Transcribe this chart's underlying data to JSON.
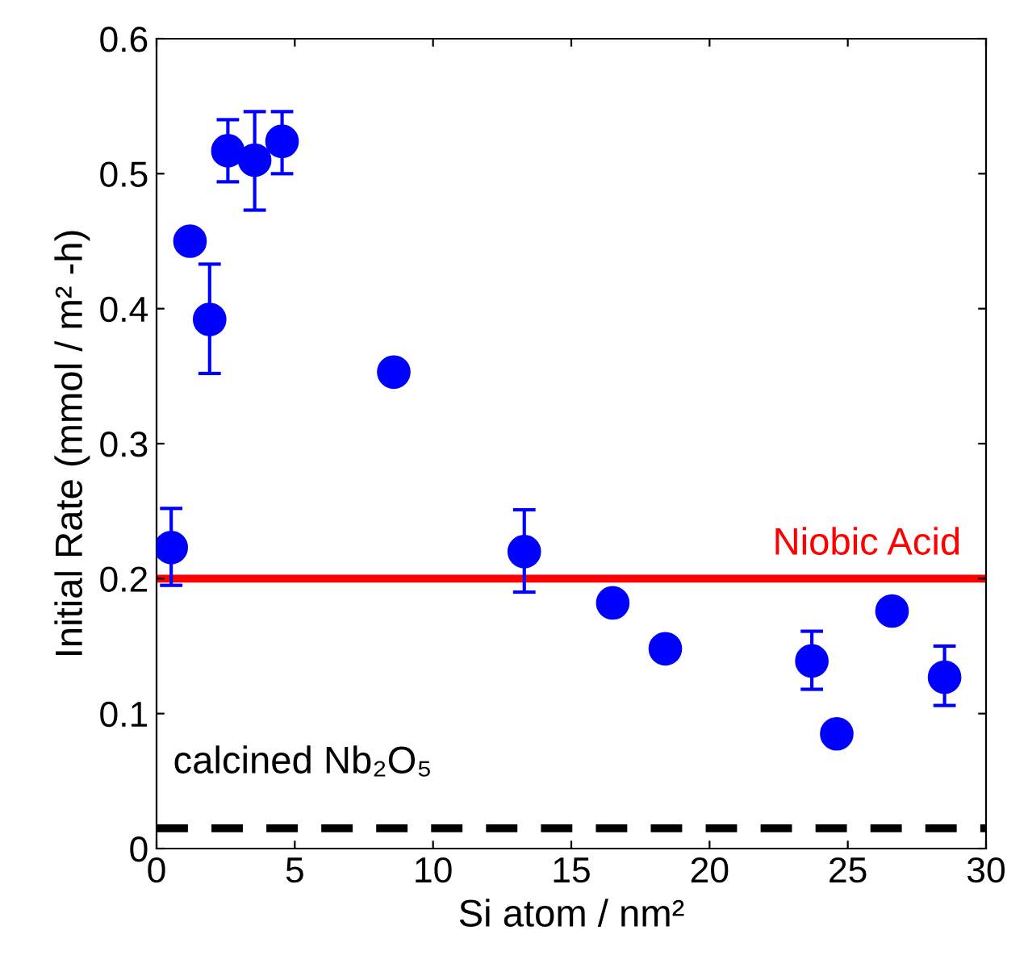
{
  "chart_data": {
    "type": "scatter",
    "xlabel": "Si atom / nm²",
    "ylabel": "Initial Rate (mmol / m² -h)",
    "xlim": [
      0,
      30
    ],
    "xticks": [
      0,
      5,
      10,
      15,
      20,
      25,
      30
    ],
    "ylim": [
      0,
      0.6
    ],
    "yticks": [
      0,
      0.1,
      0.2,
      0.3,
      0.4,
      0.5,
      0.6
    ],
    "grid": false,
    "legend": false,
    "marker": "circle",
    "series": [
      {
        "color": "#0000ff",
        "x": [
          0.53,
          1.21,
          1.92,
          2.58,
          3.55,
          4.54,
          8.58,
          13.3,
          16.5,
          18.4,
          23.7,
          24.6,
          26.6,
          28.5
        ],
        "values": [
          0.223,
          0.45,
          0.392,
          0.517,
          0.51,
          0.524,
          0.353,
          0.22,
          0.182,
          0.148,
          0.139,
          0.085,
          0.176,
          0.127
        ],
        "errors": [
          [
            0.195,
            0.252
          ],
          null,
          [
            0.352,
            0.433
          ],
          [
            0.494,
            0.54
          ],
          [
            0.473,
            0.546
          ],
          [
            0.5,
            0.546
          ],
          null,
          [
            0.19,
            0.251
          ],
          null,
          null,
          [
            0.118,
            0.161
          ],
          null,
          null,
          [
            0.106,
            0.15
          ]
        ]
      }
    ],
    "ref_lines": [
      {
        "axis": "y",
        "value": 0.2,
        "label": "Niobic Acid",
        "color": "#ff0000",
        "line_style": "solid"
      },
      {
        "axis": "y",
        "value": 0.015,
        "label": "calcined Nb₂O₅",
        "color": "#000000",
        "line_style": "dashed"
      }
    ]
  }
}
